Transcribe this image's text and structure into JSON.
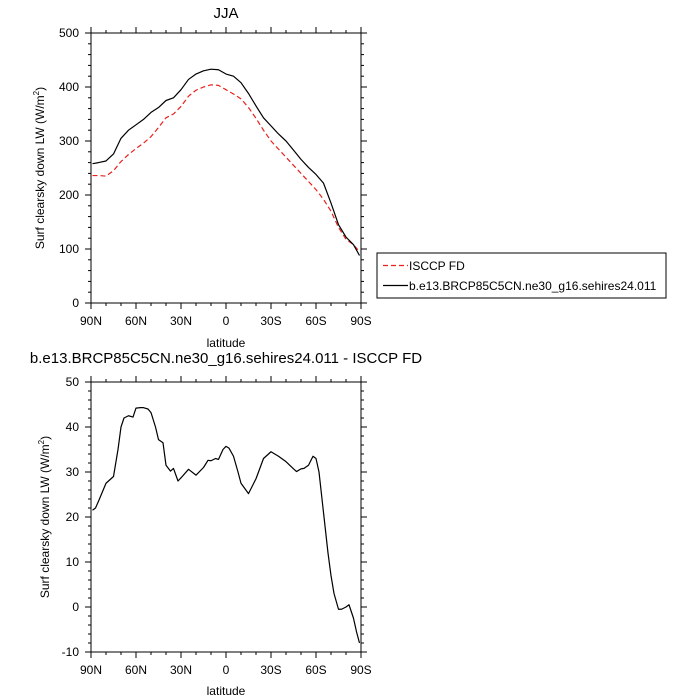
{
  "chart_data": [
    {
      "type": "line",
      "title": "JJA",
      "xlabel": "latitude",
      "ylabel": "Surf clearsky down LW (W/m²)",
      "ylabel_main": "Surf clearsky down LW (W/m",
      "ylabel_sup": "2",
      "ylabel_close": ")",
      "xlim": [
        90,
        -90
      ],
      "ylim": [
        0,
        500
      ],
      "xticks": [
        90,
        60,
        30,
        0,
        -30,
        -60,
        -90
      ],
      "xtick_labels": [
        "90N",
        "60N",
        "30N",
        "0",
        "30S",
        "60S",
        "90S"
      ],
      "yticks": [
        0,
        100,
        200,
        300,
        400,
        500
      ],
      "ytick_labels": [
        "0",
        "100",
        "200",
        "300",
        "400",
        "500"
      ],
      "legend": {
        "placement": "right",
        "entries": [
          {
            "label": "ISCCP FD",
            "color": "#e8201c",
            "dash": true
          },
          {
            "label": "b.e13.BRCP85C5CN.ne30_g16.sehires24.011",
            "color": "#000000",
            "dash": false
          }
        ]
      },
      "series": [
        {
          "name": "ISCCP FD",
          "color": "#e8201c",
          "dash": true,
          "x": [
            89,
            85,
            80,
            75,
            70,
            65,
            60,
            55,
            50,
            45,
            40,
            35,
            30,
            25,
            20,
            15,
            10,
            5,
            0,
            -5,
            -10,
            -15,
            -20,
            -25,
            -30,
            -35,
            -40,
            -45,
            -50,
            -55,
            -60,
            -65,
            -70,
            -75,
            -80,
            -85,
            -89
          ],
          "y": [
            236,
            236,
            235,
            245,
            262,
            275,
            286,
            296,
            308,
            325,
            343,
            350,
            364,
            383,
            394,
            400,
            404,
            403,
            395,
            387,
            378,
            362,
            342,
            320,
            300,
            285,
            270,
            255,
            240,
            225,
            210,
            192,
            170,
            140,
            118,
            108,
            95
          ]
        },
        {
          "name": "b.e13.BRCP85C5CN.ne30_g16.sehires24.011",
          "color": "#000000",
          "dash": false,
          "x": [
            89,
            85,
            80,
            75,
            70,
            65,
            60,
            55,
            50,
            45,
            40,
            35,
            30,
            25,
            20,
            15,
            10,
            5,
            0,
            -5,
            -10,
            -15,
            -20,
            -25,
            -30,
            -35,
            -40,
            -45,
            -50,
            -55,
            -60,
            -65,
            -70,
            -75,
            -80,
            -85,
            -89
          ],
          "y": [
            258,
            260,
            263,
            276,
            305,
            320,
            330,
            340,
            353,
            362,
            375,
            380,
            395,
            414,
            424,
            430,
            433,
            432,
            424,
            420,
            408,
            388,
            365,
            343,
            328,
            313,
            300,
            283,
            266,
            251,
            238,
            222,
            185,
            145,
            122,
            108,
            88
          ]
        }
      ]
    },
    {
      "type": "line",
      "title": "b.e13.BRCP85C5CN.ne30_g16.sehires24.011 - ISCCP FD",
      "xlabel": "latitude",
      "ylabel": "Surf clearsky down LW (W/m²)",
      "ylabel_main": "Surf clearsky down LW (W/m",
      "ylabel_sup": "2",
      "ylabel_close": ")",
      "xlim": [
        90,
        -90
      ],
      "ylim": [
        -10,
        50
      ],
      "xticks": [
        90,
        60,
        30,
        0,
        -30,
        -60,
        -90
      ],
      "xtick_labels": [
        "90N",
        "60N",
        "30N",
        "0",
        "30S",
        "60S",
        "90S"
      ],
      "yticks": [
        -10,
        0,
        10,
        20,
        30,
        40,
        50
      ],
      "ytick_labels": [
        "-10",
        "0",
        "10",
        "20",
        "30",
        "40",
        "50"
      ],
      "series": [
        {
          "color": "#000000",
          "dash": false,
          "x": [
            89,
            87,
            85,
            80,
            75,
            72,
            70,
            68,
            65,
            62,
            60,
            57,
            55,
            52,
            50,
            47,
            45,
            42,
            40,
            37,
            35,
            32,
            30,
            25,
            20,
            15,
            12,
            10,
            7,
            5,
            2,
            0,
            -2,
            -5,
            -8,
            -10,
            -15,
            -20,
            -25,
            -30,
            -35,
            -40,
            -45,
            -47,
            -50,
            -52,
            -55,
            -58,
            -60,
            -62,
            -65,
            -68,
            -70,
            -72,
            -75,
            -77,
            -80,
            -82,
            -85,
            -87,
            -89
          ],
          "y": [
            21.5,
            22,
            23.5,
            27.5,
            29,
            35,
            40,
            42,
            42.5,
            42.2,
            44.2,
            44.3,
            44.3,
            44,
            43.2,
            40,
            37.2,
            36.5,
            31.5,
            30.2,
            30.8,
            28,
            28.7,
            30.6,
            29.3,
            31,
            32.6,
            32.5,
            33,
            32.8,
            35,
            35.7,
            35.3,
            33.5,
            30,
            27.5,
            25.2,
            28.5,
            33,
            34.5,
            33.5,
            32.3,
            30.7,
            30.1,
            30.7,
            30.8,
            31.5,
            33.5,
            33,
            30,
            21,
            12,
            7,
            3,
            -0.5,
            -0.5,
            0,
            0.5,
            -2.5,
            -5.5,
            -8
          ]
        }
      ]
    }
  ]
}
